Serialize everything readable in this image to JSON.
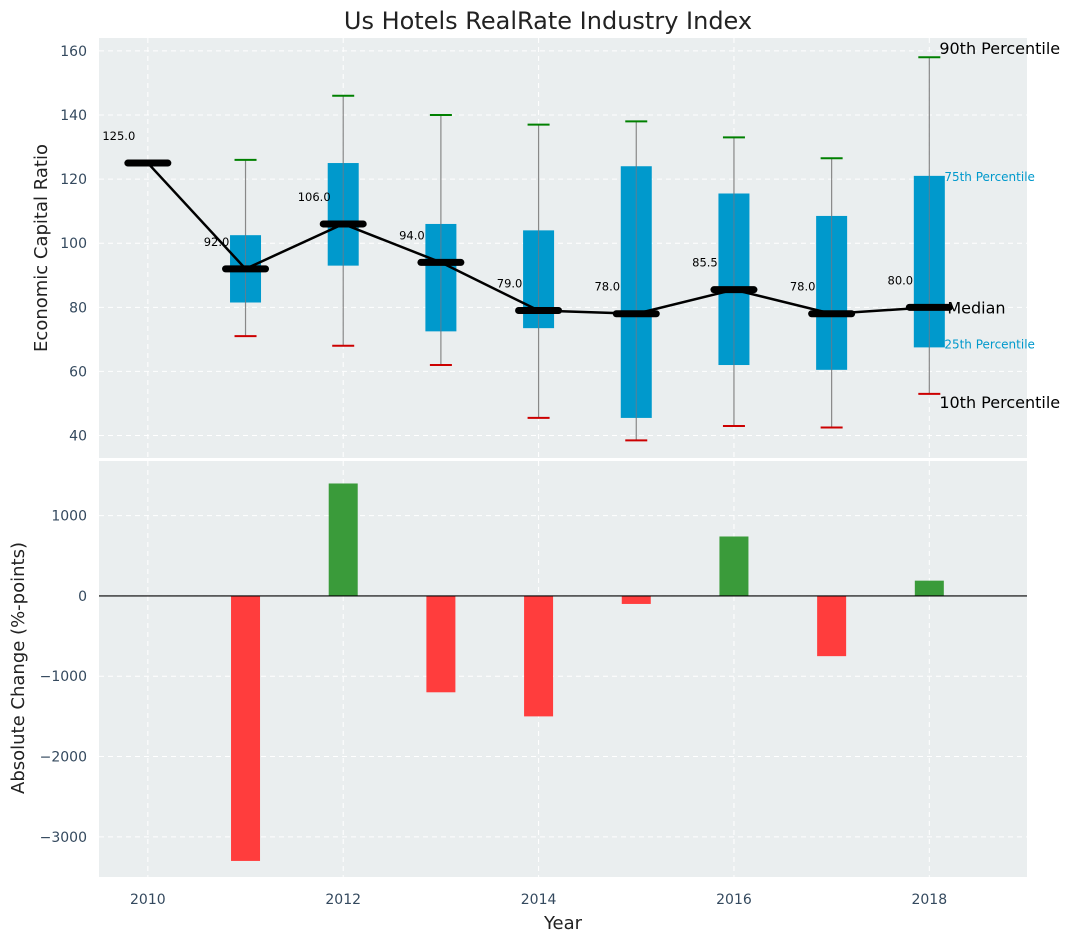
{
  "chart_data": [
    {
      "type": "box-range",
      "title": "Us Hotels RealRate Industry Index",
      "ylabel": "Economic Capital Ratio",
      "xlabel": "",
      "xlim": [
        2009.5,
        2019
      ],
      "ylim": [
        33,
        164
      ],
      "yticks": [
        40,
        60,
        80,
        100,
        120,
        140,
        160
      ],
      "grid": true,
      "years": [
        2010,
        2011,
        2012,
        2013,
        2014,
        2015,
        2016,
        2017,
        2018
      ],
      "median": [
        125.0,
        92.0,
        106.0,
        94.0,
        79.0,
        78.0,
        85.5,
        78.0,
        80.0
      ],
      "median_labels": [
        "125.0",
        "92.0",
        "106.0",
        "94.0",
        "79.0",
        "78.0",
        "85.5",
        "78.0",
        "80.0"
      ],
      "p25": [
        null,
        81.5,
        93,
        72.5,
        73.5,
        45.5,
        62,
        60.5,
        67.5
      ],
      "p75": [
        null,
        102.5,
        125,
        106,
        104,
        124,
        115.5,
        108.5,
        121
      ],
      "p10": [
        null,
        71,
        68,
        62,
        45.5,
        38.5,
        43,
        42.5,
        53
      ],
      "p90": [
        null,
        126,
        146,
        140,
        137,
        138,
        133,
        126.5,
        158
      ],
      "legend_labels": {
        "p90": "90th Percentile",
        "p75": "75th Percentile",
        "median": "Median",
        "p25": "25th Percentile",
        "p10": "10th Percentile"
      },
      "colors": {
        "box": "#0099cc",
        "median": "#000000",
        "p90": "#008000",
        "p10": "#cc0000",
        "whisker": "#888888"
      }
    },
    {
      "type": "bar",
      "title": "",
      "xlabel": "Year",
      "ylabel": "Absolute Change (%-points)",
      "xlim": [
        2009.5,
        2019
      ],
      "ylim": [
        -3500,
        1680
      ],
      "yticks": [
        -3000,
        -2000,
        -1000,
        0,
        1000
      ],
      "ytick_labels": [
        "−3000",
        "−2000",
        "−1000",
        "0",
        "1000"
      ],
      "xticks": [
        2010,
        2012,
        2014,
        2016,
        2018
      ],
      "years": [
        2011,
        2012,
        2013,
        2014,
        2015,
        2016,
        2017,
        2018
      ],
      "values": [
        -3300,
        1400,
        -1200,
        -1500,
        -100,
        740,
        -750,
        190
      ],
      "colors": {
        "positive": "#3a9b3a",
        "negative": "#ff3d3d"
      },
      "grid": true
    }
  ]
}
